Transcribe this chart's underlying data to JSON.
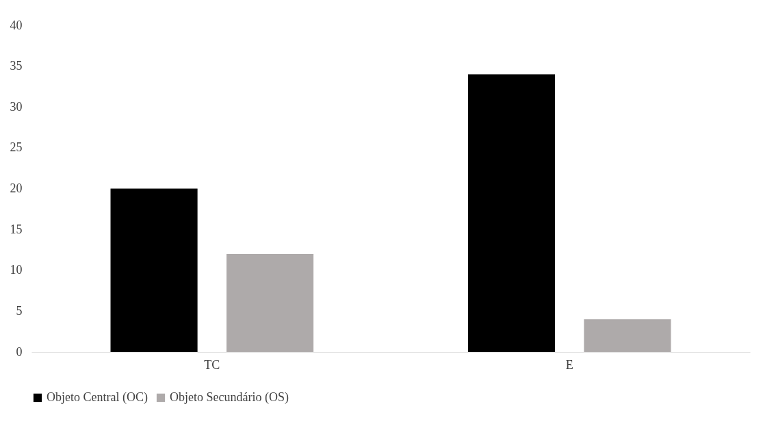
{
  "chart_data": {
    "type": "bar",
    "categories": [
      "TC",
      "E"
    ],
    "series": [
      {
        "name": "Objeto Central (OC)",
        "color": "#000000",
        "values": [
          20,
          34
        ]
      },
      {
        "name": "Objeto Secundário (OS)",
        "color": "#aeaaaa",
        "values": [
          12,
          4
        ]
      }
    ],
    "ylim": [
      0,
      40
    ],
    "yticks": [
      0,
      5,
      10,
      15,
      20,
      25,
      30,
      35,
      40
    ],
    "grid": false,
    "legend": "bottom"
  }
}
